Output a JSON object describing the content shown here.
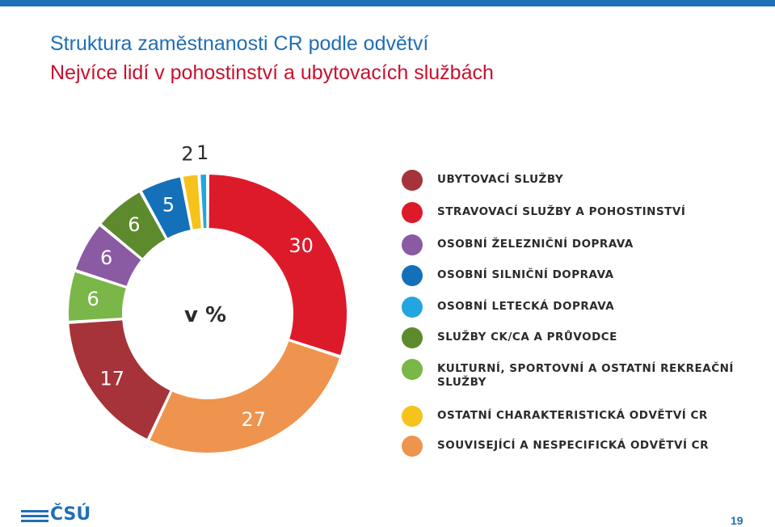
{
  "header": {
    "title": "Struktura zaměstnanosti CR podle odvětví",
    "subtitle": "Nejvíce lidí v pohostinství a ubytovacích službách"
  },
  "chart_data": {
    "type": "pie",
    "center_label": "v %",
    "categories": [
      "UBYTOVACÍ SLUŽBY",
      "STRAVOVACÍ SLUŽBY A POHOSTINSTVÍ",
      "OSOBNÍ ŽELEZNIČNÍ DOPRAVA",
      "OSOBNÍ SILNIČNÍ DOPRAVA",
      "OSOBNÍ LETECKÁ DOPRAVA",
      "SLUŽBY CK/CA A PRŮVODCE",
      "KULTURNÍ, SPORTOVNÍ A OSTATNÍ REKREAČNÍ SLUŽBY",
      "OSTATNÍ CHARAKTERISTICKÁ ODVĚTVÍ CR",
      "SOUVISEJÍCÍ A NESPECIFICKÁ ODVĚTVÍ CR"
    ],
    "slices": [
      {
        "label": "STRAVOVACÍ SLUŽBY A POHOSTINSTVÍ",
        "value": 30,
        "display": "30",
        "color": "#dd1a2a"
      },
      {
        "label": "SOUVISEJÍCÍ A NESPECIFICKÁ ODVĚTVÍ CR",
        "value": 27,
        "display": "27",
        "color": "#ef944e"
      },
      {
        "label": "UBYTOVACÍ SLUŽBY",
        "value": 17,
        "display": "17",
        "color": "#a6333a"
      },
      {
        "label": "KULTURNÍ, SPORTOVNÍ A OSTATNÍ REKREAČNÍ SLUŽBY",
        "value": 6,
        "display": "6",
        "color": "#7ab648"
      },
      {
        "label": "OSOBNÍ ŽELEZNIČNÍ DOPRAVA",
        "value": 6,
        "display": "6",
        "color": "#8a5aa3"
      },
      {
        "label": "SLUŽBY CK/CA A PRŮVODCE",
        "value": 6,
        "display": "6",
        "color": "#5e8a2e"
      },
      {
        "label": "OSOBNÍ SILNIČNÍ DOPRAVA",
        "value": 5,
        "display": "5",
        "color": "#1370b9"
      },
      {
        "label": "OSTATNÍ CHARAKTERISTICKÁ ODVĚTVÍ CR",
        "value": 2,
        "display": "2",
        "color": "#f6c21c"
      },
      {
        "label": "OSOBNÍ LETECKÁ DOPRAVA",
        "value": 1,
        "display": "1",
        "color": "#22a6e0"
      }
    ],
    "legend": [
      {
        "label": "UBYTOVACÍ SLUŽBY",
        "color": "#a6333a"
      },
      {
        "label": "STRAVOVACÍ SLUŽBY A POHOSTINSTVÍ",
        "color": "#dd1a2a"
      },
      {
        "label": "OSOBNÍ ŽELEZNIČNÍ DOPRAVA",
        "color": "#8a5aa3"
      },
      {
        "label": "OSOBNÍ SILNIČNÍ DOPRAVA",
        "color": "#1370b9"
      },
      {
        "label": "OSOBNÍ LETECKÁ DOPRAVA",
        "color": "#22a6e0"
      },
      {
        "label": "SLUŽBY CK/CA A PRŮVODCE",
        "color": "#5e8a2e"
      },
      {
        "label": "KULTURNÍ, SPORTOVNÍ A OSTATNÍ REKREAČNÍ SLUŽBY",
        "color": "#7ab648"
      },
      {
        "label": "OSTATNÍ CHARAKTERISTICKÁ ODVĚTVÍ CR",
        "color": "#f6c21c"
      },
      {
        "label": "SOUVISEJÍCÍ A NESPECIFICKÁ ODVĚTVÍ CR",
        "color": "#ef944e"
      }
    ],
    "legend_placement": "right"
  },
  "footer": {
    "logo_text": "ČSÚ",
    "page_number": "19"
  },
  "colors": {
    "brand_blue": "#1f6fb6",
    "subtitle_red": "#c8102e"
  }
}
